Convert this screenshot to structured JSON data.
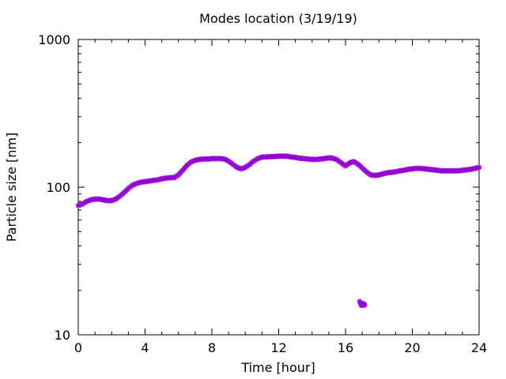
{
  "chart_data": {
    "type": "scatter",
    "title": "Modes location (3/19/19)",
    "xlabel": "Time [hour]",
    "ylabel": "Particle size [nm]",
    "xlim": [
      0,
      24
    ],
    "ylim": [
      10,
      1000
    ],
    "yscale": "log",
    "xticks": [
      0,
      4,
      8,
      12,
      16,
      20,
      24
    ],
    "xtick_labels": [
      "0",
      "4",
      "8",
      "12",
      "16",
      "20",
      "24"
    ],
    "yticks": [
      10,
      100,
      1000
    ],
    "ytick_labels": [
      "10",
      "100",
      "1000"
    ],
    "grid": false,
    "marker_color": "#9400D3",
    "series": [
      {
        "x": [
          0.0,
          0.25,
          0.5,
          0.75,
          1.0,
          1.25,
          1.5,
          1.75,
          2.0,
          2.25,
          2.5,
          2.75,
          3.0,
          3.25,
          3.5,
          3.75,
          4.0,
          4.25,
          4.5,
          4.75,
          5.0,
          5.25,
          5.5,
          5.75,
          6.0,
          6.25,
          6.5,
          6.75,
          7.0,
          7.25,
          7.5,
          7.75,
          8.0,
          8.25,
          8.5,
          8.75,
          9.0,
          9.25,
          9.5,
          9.75,
          10.0,
          10.25,
          10.5,
          10.75,
          11.0,
          11.25,
          11.5,
          11.75,
          12.0,
          12.25,
          12.5,
          12.75,
          13.0,
          13.25,
          13.5,
          13.75,
          14.0,
          14.25,
          14.5,
          14.75,
          15.0,
          15.25,
          15.5,
          15.75,
          16.0,
          16.25,
          16.5,
          16.75,
          17.0,
          17.25,
          17.5,
          17.75,
          18.0,
          18.25,
          18.5,
          18.75,
          19.0,
          19.25,
          19.5,
          19.75,
          20.0,
          20.25,
          20.5,
          20.75,
          21.0,
          21.25,
          21.5,
          21.75,
          22.0,
          22.25,
          22.5,
          22.75,
          23.0,
          23.25,
          23.5,
          23.75,
          24.0
        ],
        "y": [
          75,
          77,
          80,
          82,
          83,
          83,
          82,
          81,
          81,
          83,
          87,
          92,
          98,
          103,
          106,
          108,
          109,
          110,
          111,
          112,
          114,
          115,
          116,
          116,
          121,
          130,
          140,
          148,
          152,
          154,
          155,
          155,
          156,
          156,
          156,
          155,
          150,
          143,
          136,
          133,
          136,
          142,
          150,
          156,
          160,
          160,
          161,
          161,
          162,
          162,
          162,
          160,
          159,
          157,
          156,
          155,
          154,
          154,
          155,
          156,
          158,
          157,
          153,
          146,
          139,
          146,
          149,
          143,
          135,
          127,
          121,
          120,
          121,
          123,
          125,
          126,
          127,
          129,
          130,
          132,
          133,
          134,
          134,
          133,
          132,
          131,
          130,
          129,
          129,
          129,
          129,
          129,
          130,
          131,
          132,
          134,
          136
        ]
      },
      {
        "x": [
          16.85,
          16.9,
          16.95,
          17.0,
          17.05,
          17.1,
          17.15
        ],
        "y": [
          16.8,
          16.2,
          15.8,
          15.9,
          16.3,
          16.1,
          15.9
        ]
      }
    ]
  }
}
